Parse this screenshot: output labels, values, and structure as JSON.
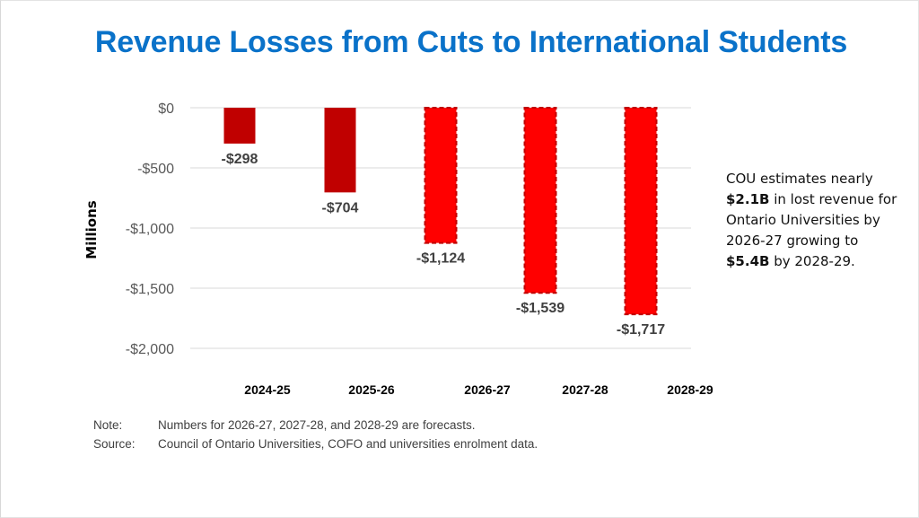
{
  "slide": {
    "title": "Revenue Losses from Cuts to International Students",
    "callout": {
      "parts": [
        {
          "text": "COU estimates nearly ",
          "bold": false
        },
        {
          "text": "$2.1B",
          "bold": true
        },
        {
          "text": " in lost revenue for Ontario Universities by 2026-27 growing to ",
          "bold": false
        },
        {
          "text": "$5.4B",
          "bold": true
        },
        {
          "text": " by 2028-29.",
          "bold": false
        }
      ]
    },
    "notes": [
      {
        "key": "Note:",
        "text": "Numbers for 2026-27, 2027-28, and 2028-29 are forecasts."
      },
      {
        "key": "Source:",
        "text": "Council of Ontario Universities, COFO and universities enrolment data."
      }
    ]
  },
  "chart_data": {
    "type": "bar",
    "title": "Revenue Losses from Cuts to International Students",
    "xlabel": "",
    "ylabel": "Millions",
    "categories": [
      "2024-25",
      "2025-26",
      "2026-27",
      "2027-28",
      "2028-29"
    ],
    "values": [
      -298,
      -704,
      -1124,
      -1539,
      -1717
    ],
    "data_labels": [
      "-$298",
      "-$704",
      "-$1,124",
      "-$1,539",
      "-$1,717"
    ],
    "forecast": [
      false,
      false,
      true,
      true,
      true
    ],
    "ylim": [
      -2000,
      0
    ],
    "yticks": [
      0,
      -500,
      -1000,
      -1500,
      -2000
    ],
    "ytick_labels": [
      "$0",
      "-$500",
      "-$1,000",
      "-$1,500",
      "-$2,000"
    ],
    "grid": true,
    "legend": "none",
    "colors": {
      "actual": "#c00000",
      "forecast_fill": "#ff0000",
      "forecast_border": "#c00000",
      "gridline": "#d9d9d9"
    }
  }
}
